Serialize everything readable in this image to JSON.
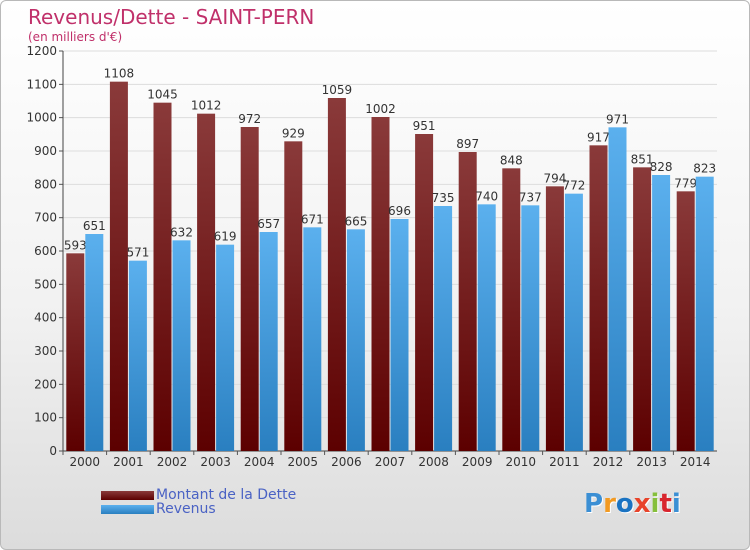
{
  "title": "Revenus/Dette - SAINT-PERN",
  "subtitle": "(en milliers d'€)",
  "logo": {
    "text": "Proxiti",
    "colors": [
      "#3b8fd4",
      "#f29a22",
      "#1a73c2",
      "#e8432a",
      "#86bf3c",
      "#d8262e",
      "#3b8fd4"
    ]
  },
  "colors": {
    "dette_top": "#8a3a3a",
    "dette_bottom": "#5c0000",
    "revenus_top": "#5bb0ee",
    "revenus_bottom": "#2a7fc0",
    "title": "#c0306a",
    "legend_text": "#4a62c4"
  },
  "legend": [
    {
      "label": "Montant de la Dette",
      "series": "dette"
    },
    {
      "label": "Revenus",
      "series": "revenus"
    }
  ],
  "chart_data": {
    "type": "bar",
    "title": "Revenus/Dette - SAINT-PERN",
    "ylabel": "(en milliers d'€)",
    "xlabel": "",
    "ylim": [
      0,
      1200
    ],
    "yticks": [
      0,
      100,
      200,
      300,
      400,
      500,
      600,
      700,
      800,
      900,
      1000,
      1100,
      1200
    ],
    "grid": true,
    "legend_position": "bottom-left",
    "categories": [
      "2000",
      "2001",
      "2002",
      "2003",
      "2004",
      "2005",
      "2006",
      "2007",
      "2008",
      "2009",
      "2010",
      "2011",
      "2012",
      "2013",
      "2014"
    ],
    "series": [
      {
        "name": "Montant de la Dette",
        "values": [
          593,
          1108,
          1045,
          1012,
          972,
          929,
          1059,
          1002,
          951,
          897,
          848,
          794,
          917,
          851,
          779
        ]
      },
      {
        "name": "Revenus",
        "values": [
          651,
          571,
          632,
          619,
          657,
          671,
          665,
          696,
          735,
          740,
          737,
          772,
          971,
          828,
          823
        ]
      }
    ]
  }
}
